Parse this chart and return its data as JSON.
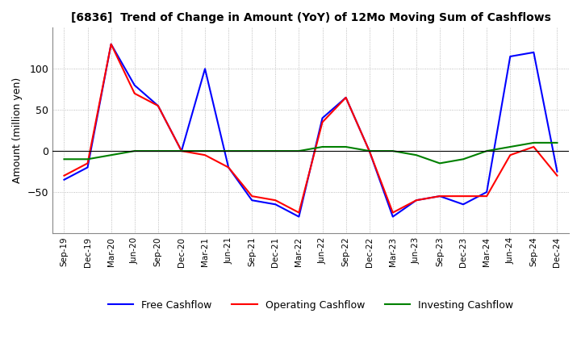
{
  "title": "[6836]  Trend of Change in Amount (YoY) of 12Mo Moving Sum of Cashflows",
  "ylabel": "Amount (million yen)",
  "ylim": [
    -100,
    150
  ],
  "yticks": [
    -50,
    0,
    50,
    100
  ],
  "labels": [
    "Sep-19",
    "Dec-19",
    "Mar-20",
    "Jun-20",
    "Sep-20",
    "Dec-20",
    "Mar-21",
    "Jun-21",
    "Sep-21",
    "Dec-21",
    "Mar-22",
    "Jun-22",
    "Sep-22",
    "Dec-22",
    "Mar-23",
    "Jun-23",
    "Sep-23",
    "Dec-23",
    "Mar-24",
    "Jun-24",
    "Sep-24",
    "Dec-24"
  ],
  "operating": [
    -30,
    -15,
    130,
    70,
    55,
    0,
    -5,
    -20,
    -55,
    -60,
    -75,
    35,
    65,
    0,
    -75,
    -60,
    -55,
    -55,
    -55,
    -5,
    5,
    -30
  ],
  "investing": [
    -10,
    -10,
    -5,
    0,
    0,
    0,
    0,
    0,
    0,
    0,
    0,
    5,
    5,
    0,
    0,
    -5,
    -15,
    -10,
    0,
    5,
    10,
    10
  ],
  "free": [
    -35,
    -20,
    130,
    80,
    55,
    0,
    100,
    -20,
    -60,
    -65,
    -80,
    40,
    65,
    0,
    -80,
    -60,
    -55,
    -65,
    -50,
    115,
    120,
    -25
  ],
  "op_color": "#ff0000",
  "inv_color": "#008000",
  "free_color": "#0000ff",
  "bg_color": "#ffffff",
  "grid_color": "#aaaaaa"
}
